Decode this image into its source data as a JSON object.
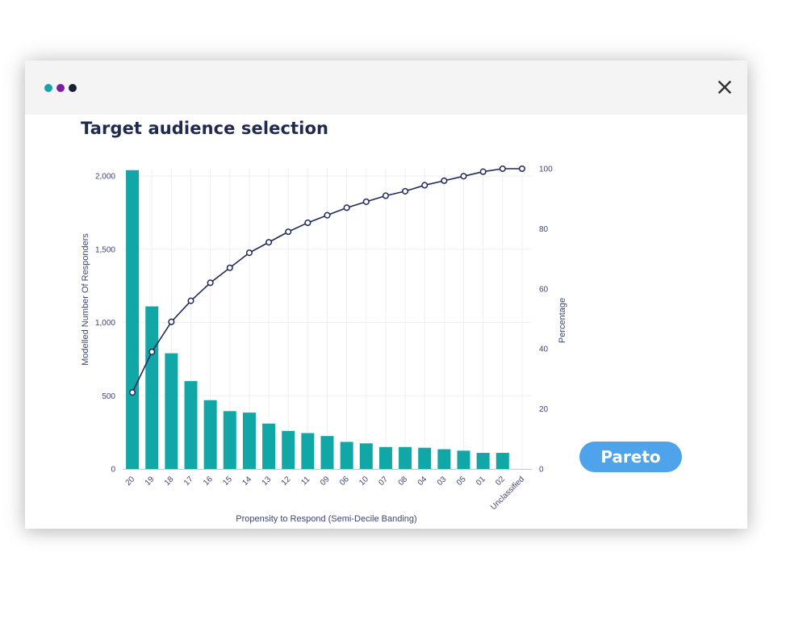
{
  "window": {
    "dots": [
      {
        "name": "teal-dot",
        "color": "#14a3a8"
      },
      {
        "name": "purple-dot",
        "color": "#7b1fa2"
      },
      {
        "name": "navy-dot",
        "color": "#1a1f3c"
      }
    ],
    "close_icon": "close-icon"
  },
  "page": {
    "title": "Target audience selection",
    "pareto_button": "Pareto"
  },
  "colors": {
    "bar": "#12a7a7",
    "line": "#1f2a5a",
    "axis_text": "#3f4670",
    "grid": "#efeff3",
    "button": "#4fa3ea"
  },
  "chart_data": {
    "type": "bar",
    "combo": "bar + line (pareto)",
    "title": "",
    "xlabel": "Propensity to Respond (Semi-Decile Banding)",
    "ylabel": "Modelled Number Of Responders",
    "y2label": "Percentage",
    "categories": [
      "20",
      "19",
      "18",
      "17",
      "16",
      "15",
      "14",
      "13",
      "12",
      "11",
      "09",
      "06",
      "10",
      "07",
      "08",
      "04",
      "03",
      "05",
      "01",
      "02",
      "Unclassified"
    ],
    "series": [
      {
        "name": "Modelled Number Of Responders",
        "type": "bar",
        "axis": "left",
        "values": [
          2040,
          1110,
          790,
          600,
          470,
          395,
          385,
          310,
          260,
          245,
          225,
          185,
          175,
          150,
          150,
          145,
          135,
          125,
          110,
          110,
          0
        ]
      },
      {
        "name": "Percentage",
        "type": "line",
        "axis": "right",
        "values": [
          25.5,
          39,
          49,
          56,
          62,
          67,
          72,
          75.5,
          79,
          82,
          84.5,
          87,
          89,
          91,
          92.5,
          94.5,
          96,
          97.5,
          99,
          100,
          100
        ]
      }
    ],
    "ylim": [
      0,
      2050
    ],
    "y2lim": [
      0,
      100
    ],
    "yticks": [
      {
        "value": 0,
        "label": "0"
      },
      {
        "value": 500,
        "label": "500"
      },
      {
        "value": 1000,
        "label": "1,000"
      },
      {
        "value": 1500,
        "label": "1,500"
      },
      {
        "value": 2000,
        "label": "2,000"
      }
    ],
    "y2ticks": [
      {
        "value": 0,
        "label": "0"
      },
      {
        "value": 20,
        "label": "20"
      },
      {
        "value": 40,
        "label": "40"
      },
      {
        "value": 60,
        "label": "60"
      },
      {
        "value": 80,
        "label": "80"
      },
      {
        "value": 100,
        "label": "100"
      }
    ],
    "grid": true,
    "legend": "none"
  }
}
